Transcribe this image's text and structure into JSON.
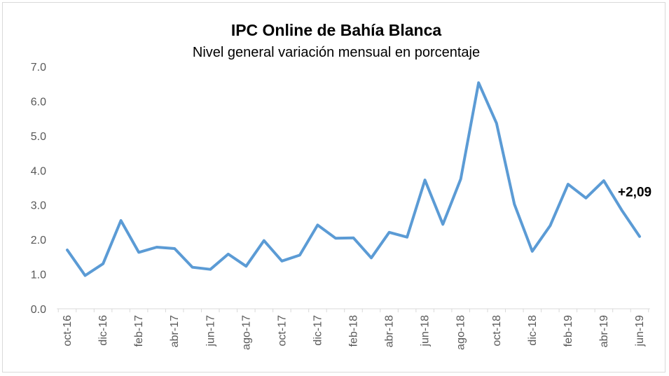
{
  "chart_data": {
    "type": "line",
    "title": "IPC Online de Bahía Blanca",
    "subtitle": "Nivel general variación mensual en porcentaje",
    "xlabel": "",
    "ylabel": "",
    "ylim": [
      0,
      7
    ],
    "yticks": [
      "0.0",
      "1.0",
      "2.0",
      "3.0",
      "4.0",
      "5.0",
      "6.0",
      "7.0"
    ],
    "grid": false,
    "categories": [
      "oct-16",
      "nov-16",
      "dic-16",
      "ene-17",
      "feb-17",
      "mar-17",
      "abr-17",
      "may-17",
      "jun-17",
      "jul-17",
      "ago-17",
      "sep-17",
      "oct-17",
      "nov-17",
      "dic-17",
      "ene-18",
      "feb-18",
      "mar-18",
      "abr-18",
      "may-18",
      "jun-18",
      "jul-18",
      "ago-18",
      "sep-18",
      "oct-18",
      "nov-18",
      "dic-18",
      "ene-19",
      "feb-19",
      "mar-19",
      "abr-19",
      "may-19",
      "jun-19"
    ],
    "tick_labels": [
      "oct-16",
      "dic-16",
      "feb-17",
      "abr-17",
      "jun-17",
      "ago-17",
      "oct-17",
      "dic-17",
      "feb-18",
      "abr-18",
      "jun-18",
      "ago-18",
      "oct-18",
      "dic-18",
      "feb-19",
      "abr-19",
      "jun-19"
    ],
    "series": [
      {
        "color": "#5b9bd5",
        "values": [
          1.7,
          0.96,
          1.3,
          2.55,
          1.63,
          1.78,
          1.74,
          1.2,
          1.14,
          1.58,
          1.23,
          1.97,
          1.38,
          1.55,
          2.42,
          2.04,
          2.05,
          1.47,
          2.21,
          2.07,
          3.72,
          2.44,
          3.75,
          6.53,
          5.36,
          3.02,
          1.66,
          2.4,
          3.6,
          3.2,
          3.7,
          2.85,
          2.09
        ]
      }
    ],
    "annotation": {
      "text": "+2,09",
      "index": 32
    }
  }
}
